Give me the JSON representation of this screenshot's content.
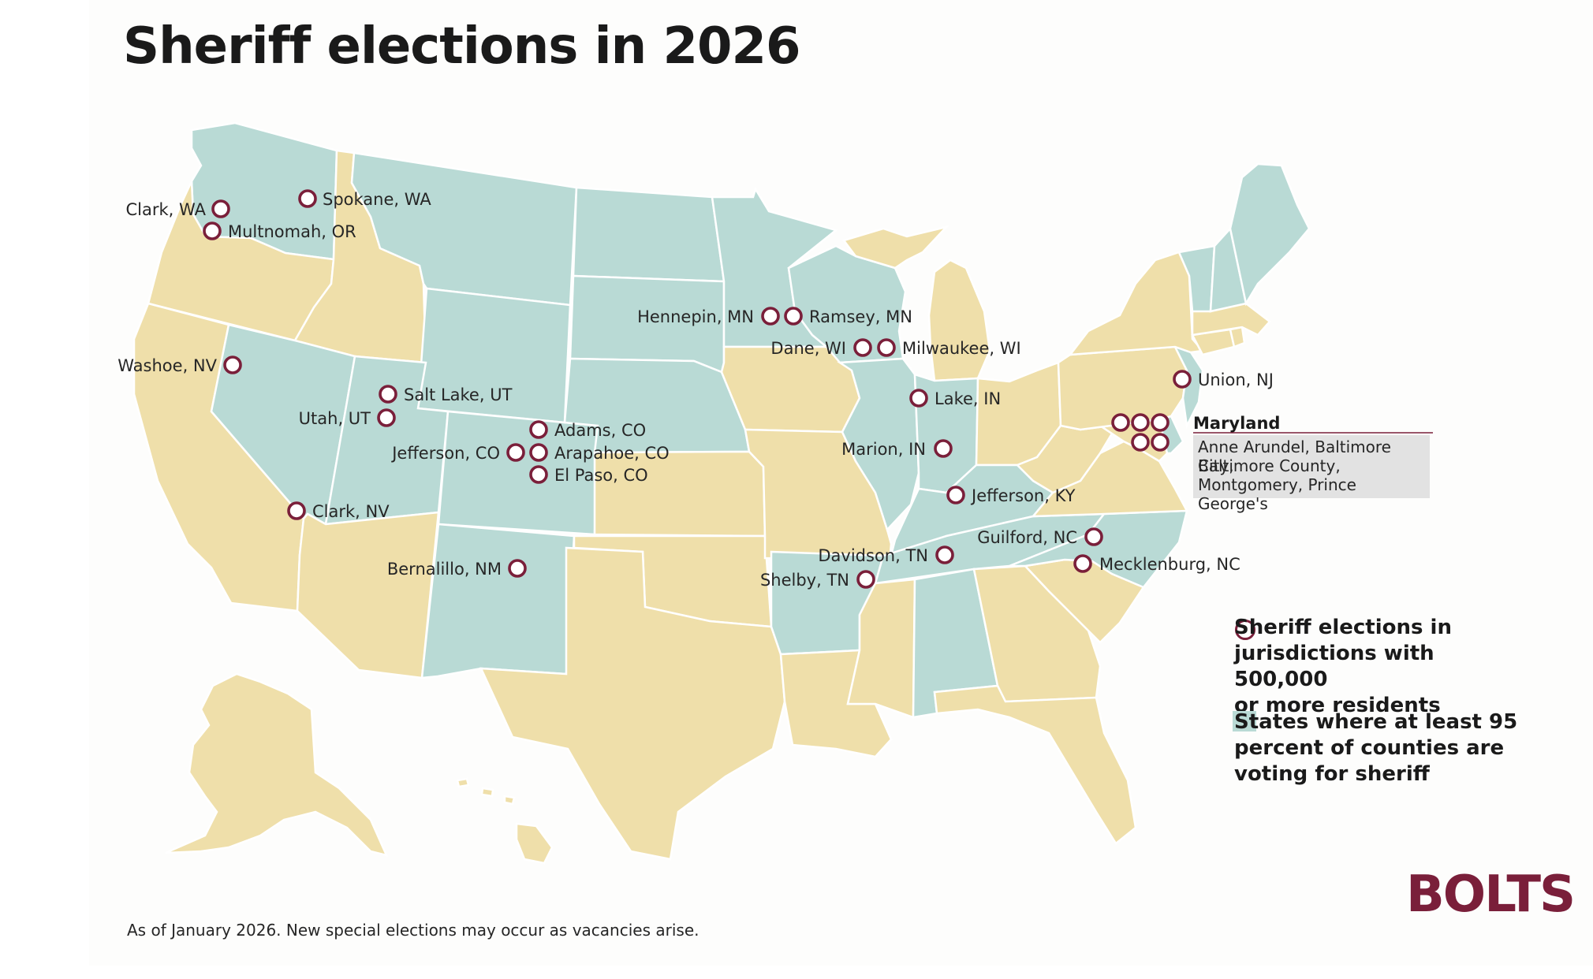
{
  "title": "Sheriff elections in 2026",
  "colors": {
    "qualifying_state": "#b9dad5",
    "other_state": "#efdfaa",
    "marker_stroke": "#7a1f3a",
    "brand": "#7a1f3a"
  },
  "states": [
    {
      "name": "Washington",
      "status": "qualifying"
    },
    {
      "name": "Oregon",
      "status": "other"
    },
    {
      "name": "California",
      "status": "other"
    },
    {
      "name": "Idaho",
      "status": "other"
    },
    {
      "name": "Nevada",
      "status": "qualifying"
    },
    {
      "name": "Montana",
      "status": "qualifying"
    },
    {
      "name": "Wyoming",
      "status": "qualifying"
    },
    {
      "name": "Utah",
      "status": "qualifying"
    },
    {
      "name": "Arizona",
      "status": "other"
    },
    {
      "name": "Colorado",
      "status": "qualifying"
    },
    {
      "name": "New Mexico",
      "status": "qualifying"
    },
    {
      "name": "North Dakota",
      "status": "qualifying"
    },
    {
      "name": "South Dakota",
      "status": "qualifying"
    },
    {
      "name": "Nebraska",
      "status": "qualifying"
    },
    {
      "name": "Kansas",
      "status": "other"
    },
    {
      "name": "Oklahoma",
      "status": "other"
    },
    {
      "name": "Texas",
      "status": "other"
    },
    {
      "name": "Minnesota",
      "status": "qualifying"
    },
    {
      "name": "Iowa",
      "status": "other"
    },
    {
      "name": "Missouri",
      "status": "other"
    },
    {
      "name": "Arkansas",
      "status": "qualifying"
    },
    {
      "name": "Louisiana",
      "status": "other"
    },
    {
      "name": "Wisconsin",
      "status": "qualifying"
    },
    {
      "name": "Illinois",
      "status": "qualifying"
    },
    {
      "name": "Michigan",
      "status": "other"
    },
    {
      "name": "Indiana",
      "status": "qualifying"
    },
    {
      "name": "Ohio",
      "status": "other"
    },
    {
      "name": "Kentucky",
      "status": "qualifying"
    },
    {
      "name": "Tennessee",
      "status": "qualifying"
    },
    {
      "name": "Mississippi",
      "status": "other"
    },
    {
      "name": "Alabama",
      "status": "qualifying"
    },
    {
      "name": "Georgia",
      "status": "other"
    },
    {
      "name": "Florida",
      "status": "other"
    },
    {
      "name": "South Carolina",
      "status": "other"
    },
    {
      "name": "North Carolina",
      "status": "qualifying"
    },
    {
      "name": "Virginia",
      "status": "other"
    },
    {
      "name": "West Virginia",
      "status": "other"
    },
    {
      "name": "Maryland",
      "status": "other"
    },
    {
      "name": "Delaware",
      "status": "qualifying"
    },
    {
      "name": "Pennsylvania",
      "status": "other"
    },
    {
      "name": "New Jersey",
      "status": "qualifying"
    },
    {
      "name": "New York",
      "status": "other"
    },
    {
      "name": "Connecticut",
      "status": "other"
    },
    {
      "name": "Rhode Island",
      "status": "other"
    },
    {
      "name": "Massachusetts",
      "status": "other"
    },
    {
      "name": "Vermont",
      "status": "qualifying"
    },
    {
      "name": "New Hampshire",
      "status": "qualifying"
    },
    {
      "name": "Maine",
      "status": "qualifying"
    },
    {
      "name": "Alaska",
      "status": "other"
    },
    {
      "name": "Hawaii",
      "status": "other"
    }
  ],
  "jurisdictions": [
    "Clark, WA",
    "Spokane, WA",
    "Multnomah, OR",
    "Washoe, NV",
    "Salt Lake, UT",
    "Utah, UT",
    "Adams, CO",
    "Jefferson, CO",
    "Arapahoe, CO",
    "El Paso, CO",
    "Clark, NV",
    "Bernalillo, NM",
    "Hennepin, MN",
    "Ramsey, MN",
    "Dane, WI",
    "Milwaukee, WI",
    "Lake, IN",
    "Marion, IN",
    "Jefferson, KY",
    "Davidson, TN",
    "Shelby, TN",
    "Guilford, NC",
    "Mecklenburg, NC",
    "Union, NJ"
  ],
  "maryland": {
    "label": "Maryland",
    "counties_line1": "Anne Arundel, Baltimore City,",
    "counties_line2": "Baltimore County,",
    "counties_line3": "Montgomery, Prince George's"
  },
  "legend": {
    "markers_line1": "Sheriff elections in",
    "markers_line2": "jurisdictions with 500,000",
    "markers_line3": "or more residents",
    "states_line1": "States where at least 95",
    "states_line2": "percent of counties are",
    "states_line3": "voting for sheriff"
  },
  "footnote": "As of January 2026. New special elections may occur as vacancies arise.",
  "logo": "BOLTS"
}
